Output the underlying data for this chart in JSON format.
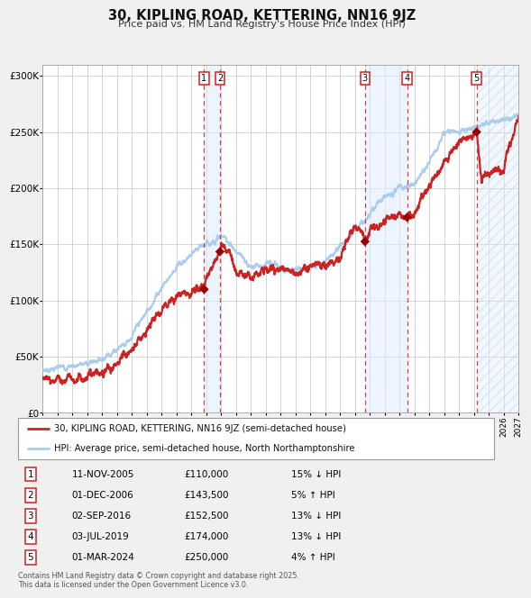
{
  "title": "30, KIPLING ROAD, KETTERING, NN16 9JZ",
  "subtitle": "Price paid vs. HM Land Registry's House Price Index (HPI)",
  "ylim": [
    0,
    310000
  ],
  "yticks": [
    0,
    50000,
    100000,
    150000,
    200000,
    250000,
    300000
  ],
  "ytick_labels": [
    "£0",
    "£50K",
    "£100K",
    "£150K",
    "£200K",
    "£250K",
    "£300K"
  ],
  "background_color": "#f0f0f0",
  "plot_background": "#ffffff",
  "grid_color": "#cccccc",
  "hpi_color": "#aaccee",
  "price_color": "#cc2222",
  "sale_marker_color": "#990000",
  "transactions": [
    {
      "num": 1,
      "date": "11-NOV-2005",
      "year": 2005.86,
      "price": 110000,
      "hpi_pct": "15% ↓ HPI"
    },
    {
      "num": 2,
      "date": "01-DEC-2006",
      "year": 2006.92,
      "price": 143500,
      "hpi_pct": "5% ↑ HPI"
    },
    {
      "num": 3,
      "date": "02-SEP-2016",
      "year": 2016.67,
      "price": 152500,
      "hpi_pct": "13% ↓ HPI"
    },
    {
      "num": 4,
      "date": "03-JUL-2019",
      "year": 2019.5,
      "price": 174000,
      "hpi_pct": "13% ↓ HPI"
    },
    {
      "num": 5,
      "date": "01-MAR-2024",
      "year": 2024.17,
      "price": 250000,
      "hpi_pct": "4% ↑ HPI"
    }
  ],
  "legend_entries": [
    "30, KIPLING ROAD, KETTERING, NN16 9JZ (semi-detached house)",
    "HPI: Average price, semi-detached house, North Northamptonshire"
  ],
  "footnote": "Contains HM Land Registry data © Crown copyright and database right 2025.\nThis data is licensed under the Open Government Licence v3.0.",
  "xmin": 1995,
  "xmax": 2027,
  "hpi_anchors": [
    [
      1995,
      38000
    ],
    [
      1996,
      40000
    ],
    [
      1997,
      42000
    ],
    [
      1998,
      44000
    ],
    [
      1999,
      49000
    ],
    [
      2000,
      57000
    ],
    [
      2001,
      68000
    ],
    [
      2002,
      90000
    ],
    [
      2003,
      112000
    ],
    [
      2004,
      130000
    ],
    [
      2005,
      140000
    ],
    [
      2006,
      150000
    ],
    [
      2007,
      157000
    ],
    [
      2007.5,
      153000
    ],
    [
      2008,
      143000
    ],
    [
      2009,
      130000
    ],
    [
      2010,
      133000
    ],
    [
      2011,
      129000
    ],
    [
      2012,
      127000
    ],
    [
      2013,
      130000
    ],
    [
      2014,
      136000
    ],
    [
      2015,
      148000
    ],
    [
      2016,
      163000
    ],
    [
      2017,
      178000
    ],
    [
      2018,
      192000
    ],
    [
      2019,
      200000
    ],
    [
      2020,
      203000
    ],
    [
      2021,
      222000
    ],
    [
      2022,
      248000
    ],
    [
      2023,
      250000
    ],
    [
      2024,
      255000
    ],
    [
      2025,
      258000
    ],
    [
      2026,
      262000
    ],
    [
      2027,
      265000
    ]
  ],
  "price_anchors": [
    [
      1995,
      30000
    ],
    [
      1996,
      30000
    ],
    [
      1997,
      31000
    ],
    [
      1998,
      32500
    ],
    [
      1999,
      37000
    ],
    [
      2000,
      43000
    ],
    [
      2001,
      56000
    ],
    [
      2002,
      74000
    ],
    [
      2003,
      92000
    ],
    [
      2004,
      105000
    ],
    [
      2005.0,
      107000
    ],
    [
      2005.86,
      110000
    ],
    [
      2006.0,
      120000
    ],
    [
      2006.5,
      135000
    ],
    [
      2006.92,
      143500
    ],
    [
      2007.1,
      155000
    ],
    [
      2007.5,
      145000
    ],
    [
      2008.0,
      128000
    ],
    [
      2009.0,
      120000
    ],
    [
      2010.0,
      127000
    ],
    [
      2011.0,
      128000
    ],
    [
      2012.0,
      126000
    ],
    [
      2013.0,
      130000
    ],
    [
      2014.0,
      132000
    ],
    [
      2015.0,
      138000
    ],
    [
      2016.0,
      168000
    ],
    [
      2016.67,
      152500
    ],
    [
      2017.0,
      162000
    ],
    [
      2018.0,
      172000
    ],
    [
      2019.0,
      178000
    ],
    [
      2019.5,
      174000
    ],
    [
      2020.0,
      178000
    ],
    [
      2021.0,
      202000
    ],
    [
      2022.0,
      222000
    ],
    [
      2023.0,
      242000
    ],
    [
      2024.1,
      248000
    ],
    [
      2024.17,
      250000
    ],
    [
      2024.5,
      208000
    ],
    [
      2025.0,
      212000
    ],
    [
      2026.0,
      218000
    ],
    [
      2027.0,
      265000
    ]
  ]
}
